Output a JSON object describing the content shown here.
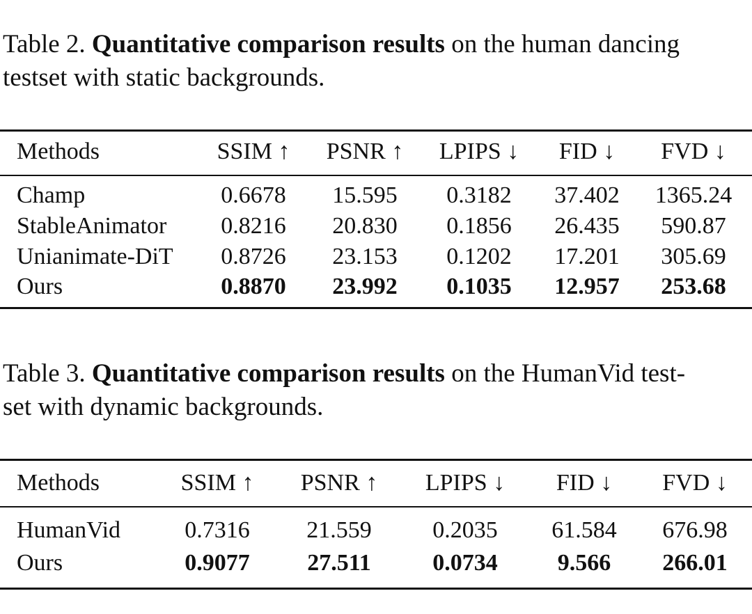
{
  "table2": {
    "caption_prefix": "Table 2.",
    "caption_bold": "Quantitative comparison results",
    "caption_rest_line1": "on the human dancing",
    "caption_line2": "testset with static backgrounds.",
    "headers": [
      "Methods",
      "SSIM ↑",
      "PSNR ↑",
      "LPIPS ↓",
      "FID ↓",
      "FVD ↓"
    ],
    "rows": [
      {
        "method": "Champ",
        "values": [
          "0.6678",
          "15.595",
          "0.3182",
          "37.402",
          "1365.24"
        ],
        "bold": false
      },
      {
        "method": "StableAnimator",
        "values": [
          "0.8216",
          "20.830",
          "0.1856",
          "26.435",
          "590.87"
        ],
        "bold": false
      },
      {
        "method": "Unianimate-DiT",
        "values": [
          "0.8726",
          "23.153",
          "0.1202",
          "17.201",
          "305.69"
        ],
        "bold": false
      },
      {
        "method": "Ours",
        "values": [
          "0.8870",
          "23.992",
          "0.1035",
          "12.957",
          "253.68"
        ],
        "bold": true
      }
    ]
  },
  "table3": {
    "caption_prefix": "Table 3.",
    "caption_bold": "Quantitative comparison results",
    "caption_rest_line1": "on the HumanVid test-",
    "caption_line2": "set with dynamic backgrounds.",
    "headers": [
      "Methods",
      "SSIM ↑",
      "PSNR ↑",
      "LPIPS ↓",
      "FID ↓",
      "FVD ↓"
    ],
    "rows": [
      {
        "method": "HumanVid",
        "values": [
          "0.7316",
          "21.559",
          "0.2035",
          "61.584",
          "676.98"
        ],
        "bold": false
      },
      {
        "method": "Ours",
        "values": [
          "0.9077",
          "27.511",
          "0.0734",
          "9.566",
          "266.01"
        ],
        "bold": true
      }
    ]
  }
}
